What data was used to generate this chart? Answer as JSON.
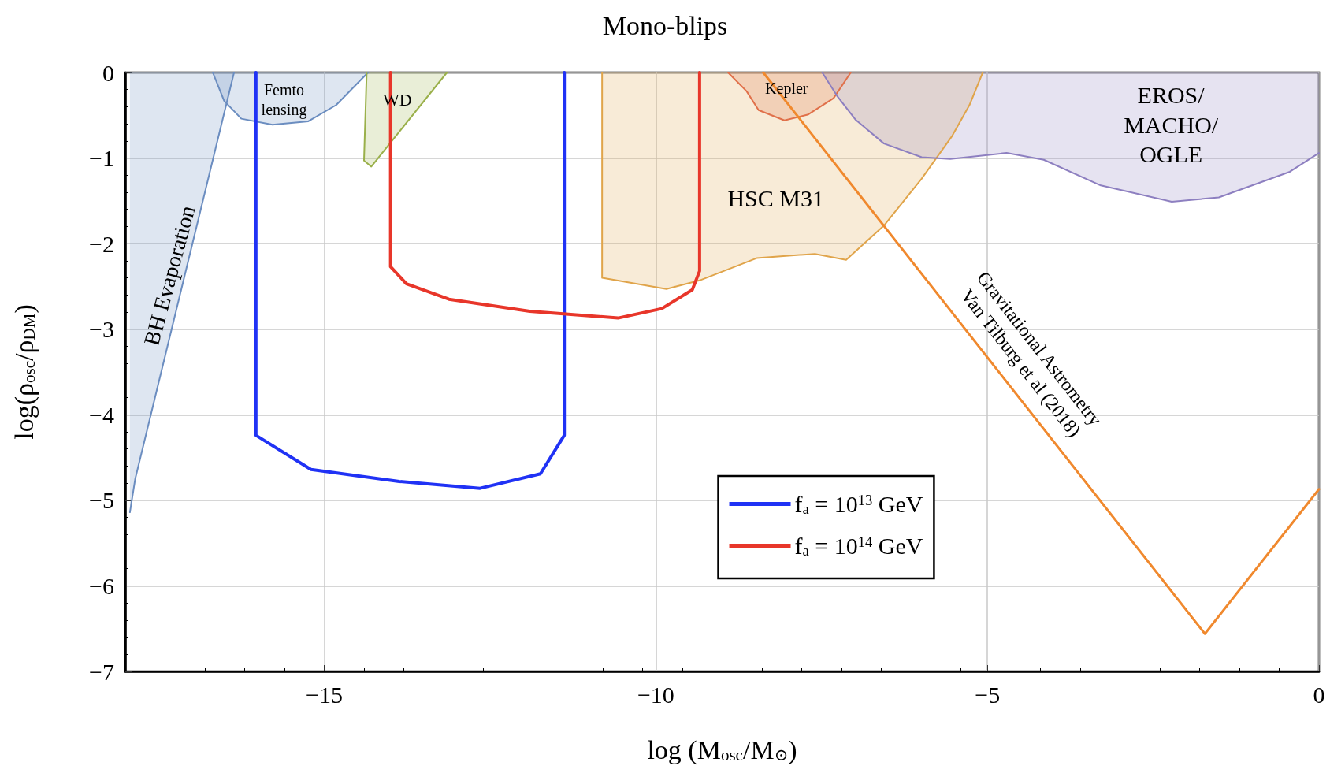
{
  "chart_data": {
    "type": "line",
    "title": "Mono-blips",
    "xlabel": "log (M$_{osc}$/M$_{⊙}$)",
    "ylabel": "log(ρ$_{osc}$/ρ$_{DM}$)",
    "xlim": [
      -18,
      0
    ],
    "xticks": [
      -15,
      -10,
      -5,
      0
    ],
    "ylim": [
      -7,
      0
    ],
    "yticks": [
      -7,
      -6,
      -5,
      -4,
      -3,
      -2,
      -1,
      0
    ],
    "grid": true,
    "legend": "bottom",
    "series": [
      {
        "type": "area",
        "color": "#6b8dc0",
        "x": [
          -17.93,
          -17.85,
          -16.36
        ],
        "values": [
          -5.14,
          -4.75,
          0
        ]
      },
      {
        "type": "area",
        "color": "#6b8dc0",
        "x": [
          -16.68,
          -16.51,
          -16.25,
          -15.78,
          -15.24,
          -14.82,
          -14.34
        ],
        "values": [
          0,
          -0.33,
          -0.54,
          -0.61,
          -0.57,
          -0.38,
          0
        ]
      },
      {
        "type": "area",
        "color": "#9ab04a",
        "x": [
          -14.36,
          -14.4,
          -14.29,
          -13.15
        ],
        "values": [
          0,
          -1.03,
          -1.1,
          0
        ]
      },
      {
        "type": "area",
        "color": "#e0a44a",
        "x": [
          -10.81,
          -10.81,
          -9.84,
          -9.34,
          -8.48,
          -7.6,
          -7.13,
          -6.56,
          -5.99,
          -5.53,
          -5.27,
          -5.07
        ],
        "values": [
          0,
          -2.4,
          -2.53,
          -2.43,
          -2.17,
          -2.12,
          -2.19,
          -1.79,
          -1.24,
          -0.74,
          -0.38,
          0
        ]
      },
      {
        "type": "area",
        "color": "#e0704a",
        "x": [
          -8.91,
          -8.63,
          -8.45,
          -8.06,
          -7.7,
          -7.32,
          -7.06
        ],
        "values": [
          0,
          -0.22,
          -0.44,
          -0.56,
          -0.49,
          -0.3,
          0
        ]
      },
      {
        "type": "area",
        "color": "#8d7fc0",
        "x": [
          -7.49,
          -7.27,
          -6.99,
          -6.56,
          -5.99,
          -5.56,
          -4.71,
          -4.15,
          -3.29,
          -2.22,
          -1.51,
          -0.44,
          0
        ],
        "values": [
          0,
          -0.27,
          -0.55,
          -0.83,
          -0.99,
          -1.01,
          -0.94,
          -1.02,
          -1.32,
          -1.51,
          -1.46,
          -1.16,
          -0.94
        ]
      },
      {
        "color": "#f0892e",
        "x": [
          -8.38,
          -1.72,
          0
        ],
        "values": [
          0,
          -6.56,
          -4.87
        ]
      },
      {
        "name": "f$_{a}$ = 10$^{13}$ GeV",
        "color": "#2032f5",
        "x": [
          -16.03,
          -16.03,
          -15.2,
          -13.87,
          -12.65,
          -11.74,
          -11.38,
          -11.38
        ],
        "values": [
          0,
          -4.24,
          -4.64,
          -4.78,
          -4.86,
          -4.69,
          -4.24,
          0
        ]
      },
      {
        "name": "f$_{a}$ = 10$^{14}$ GeV",
        "color": "#e8362a",
        "x": [
          -14.0,
          -14.0,
          -13.76,
          -13.12,
          -11.9,
          -10.57,
          -9.91,
          -9.45,
          -9.34,
          -9.34
        ],
        "values": [
          0,
          -2.27,
          -2.47,
          -2.65,
          -2.79,
          -2.87,
          -2.76,
          -2.54,
          -2.32,
          0
        ]
      }
    ],
    "annotations": [
      "BH Evaporation",
      "Femto\nlensing",
      "WD",
      "Kepler",
      "HSC M31",
      "EROS/\nMACHO/\nOGLE",
      "Gravitational Astrometry\nVan Tilburg et al (2018)"
    ]
  }
}
